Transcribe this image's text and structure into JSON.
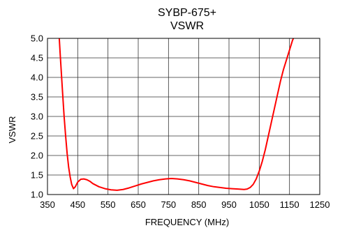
{
  "chart_data": {
    "type": "line",
    "title": "SYBP-675+",
    "subtitle": "VSWR",
    "xlabel": "FREQUENCY (MHz)",
    "ylabel": "VSWR",
    "xlim": [
      350,
      1250
    ],
    "ylim": [
      1.0,
      5.0
    ],
    "x_ticks": [
      350,
      450,
      550,
      650,
      750,
      850,
      950,
      1050,
      1150,
      1250
    ],
    "y_ticks": [
      1.0,
      1.5,
      2.0,
      2.5,
      3.0,
      3.5,
      4.0,
      4.5,
      5.0
    ],
    "x_tick_labels": [
      "350",
      "450",
      "550",
      "650",
      "750",
      "850",
      "950",
      "1050",
      "1150",
      "1250"
    ],
    "y_tick_labels": [
      "1.0",
      "1.5",
      "2.0",
      "2.5",
      "3.0",
      "3.5",
      "4.0",
      "4.5",
      "5.0"
    ],
    "grid": true,
    "legend": "none",
    "series": [
      {
        "color": "#ff0000",
        "x": [
          389,
          392,
          396,
          400,
          405,
          410,
          415,
          420,
          425,
          430,
          436,
          442,
          450,
          460,
          470,
          480,
          490,
          500,
          520,
          540,
          560,
          580,
          600,
          620,
          640,
          660,
          680,
          700,
          720,
          740,
          760,
          780,
          800,
          820,
          840,
          860,
          880,
          900,
          920,
          940,
          960,
          980,
          1000,
          1010,
          1020,
          1030,
          1040,
          1050,
          1060,
          1070,
          1080,
          1090,
          1100,
          1110,
          1120,
          1130,
          1140,
          1150,
          1160,
          1163
        ],
        "values": [
          5.0,
          4.6,
          4.1,
          3.6,
          3.0,
          2.5,
          2.05,
          1.7,
          1.45,
          1.26,
          1.15,
          1.2,
          1.32,
          1.39,
          1.4,
          1.38,
          1.34,
          1.28,
          1.2,
          1.15,
          1.12,
          1.11,
          1.13,
          1.17,
          1.22,
          1.27,
          1.31,
          1.35,
          1.38,
          1.4,
          1.41,
          1.4,
          1.38,
          1.35,
          1.31,
          1.27,
          1.23,
          1.2,
          1.18,
          1.16,
          1.15,
          1.14,
          1.13,
          1.14,
          1.18,
          1.26,
          1.4,
          1.6,
          1.85,
          2.15,
          2.5,
          2.85,
          3.2,
          3.55,
          3.9,
          4.2,
          4.45,
          4.7,
          4.95,
          5.0
        ]
      }
    ]
  }
}
